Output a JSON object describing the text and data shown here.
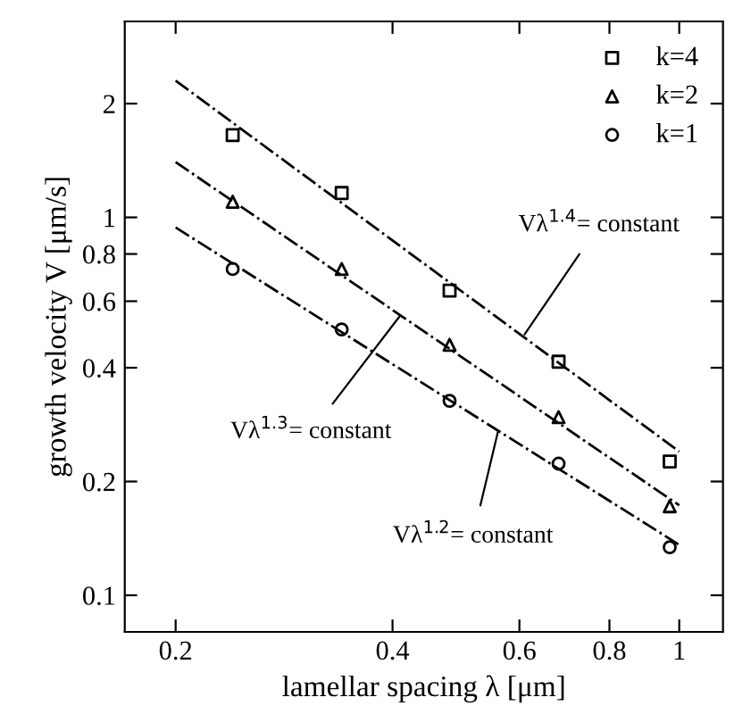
{
  "chart_data": {
    "type": "scatter",
    "xlabel": "lamellar spacing λ [μm]",
    "ylabel": "growth velocity V [μm/s]",
    "log": "xy",
    "xlim": [
      0.17,
      1.15
    ],
    "ylim": [
      0.08,
      3.3
    ],
    "xticks": [
      0.2,
      0.4,
      0.6,
      0.8,
      {
        "value": 1,
        "label": "1"
      }
    ],
    "yticks": [
      0.1,
      0.2,
      0.4,
      0.6,
      0.8,
      {
        "value": 1,
        "label": "1"
      },
      {
        "value": 2,
        "label": "2"
      }
    ],
    "grid": false,
    "legend": "top right",
    "series": [
      {
        "name": "k=4",
        "marker": "square",
        "color": "#000000",
        "x": [
          0.24,
          0.34,
          0.48,
          0.68,
          0.97
        ],
        "values": [
          1.65,
          1.16,
          0.64,
          0.415,
          0.226
        ]
      },
      {
        "name": "k=2",
        "marker": "triangle",
        "color": "#000000",
        "x": [
          0.24,
          0.34,
          0.48,
          0.68,
          0.97
        ],
        "values": [
          1.1,
          0.73,
          0.46,
          0.296,
          0.172
        ]
      },
      {
        "name": "k=1",
        "marker": "circle",
        "color": "#000000",
        "x": [
          0.24,
          0.34,
          0.48,
          0.68,
          0.97
        ],
        "values": [
          0.73,
          0.505,
          0.327,
          0.223,
          0.134
        ]
      },
      {
        "type": "line",
        "line_style": "dashdot",
        "color": "#000000",
        "x": [
          0.2,
          1.0
        ],
        "values": [
          2.3,
          0.24
        ]
      },
      {
        "type": "line",
        "line_style": "dashdot",
        "color": "#000000",
        "x": [
          0.2,
          1.0
        ],
        "values": [
          1.4,
          0.173
        ]
      },
      {
        "type": "line",
        "line_style": "dashdot",
        "color": "#000000",
        "x": [
          0.2,
          1.0
        ],
        "values": [
          0.94,
          0.136
        ]
      }
    ],
    "annotations": [
      {
        "text": "Vλ$^{1.4}$= constant",
        "x": 0.61,
        "y": 0.49
      },
      {
        "text": "Vλ$^{1.3}$= constant",
        "x": 0.41,
        "y": 0.55
      },
      {
        "text": "Vλ$^{1.2}$= constant",
        "x": 0.56,
        "y": 0.27
      }
    ]
  }
}
